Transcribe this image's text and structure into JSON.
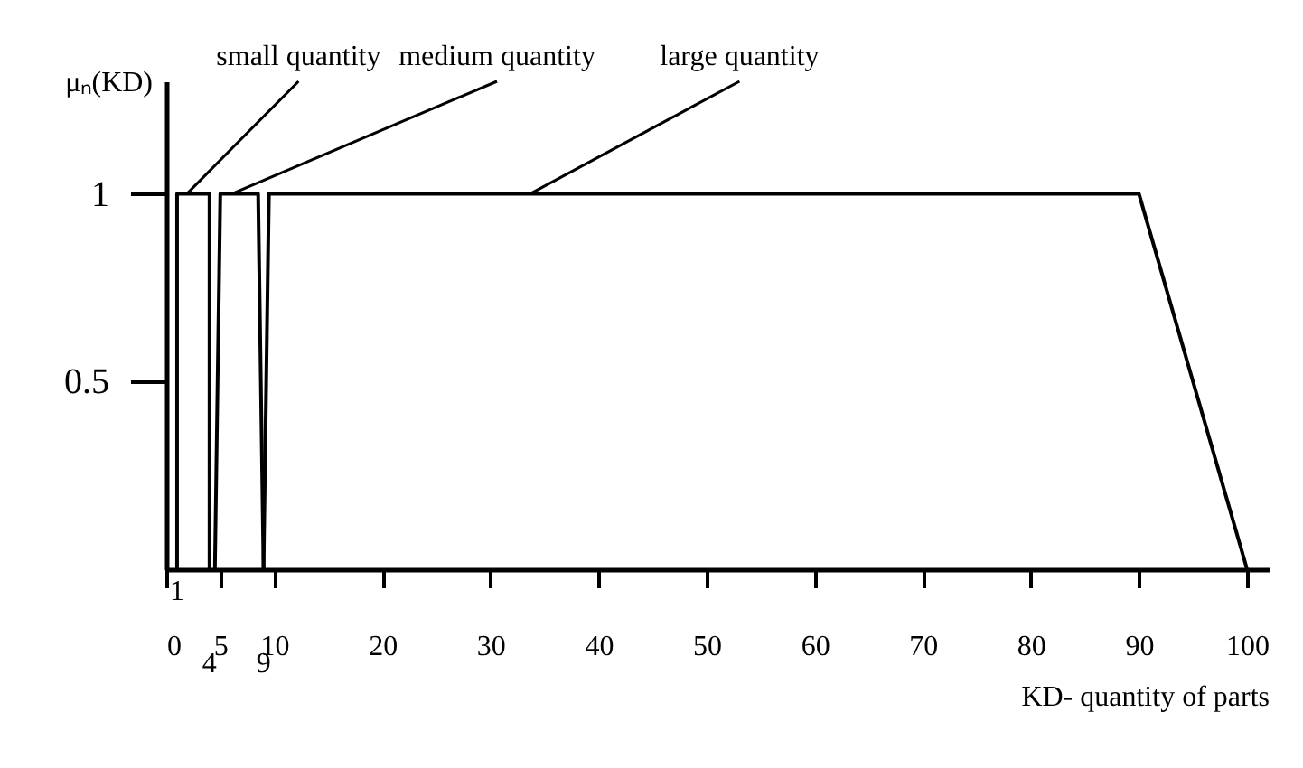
{
  "chart_data": {
    "type": "line",
    "xlabel": "KD- quantity of parts",
    "ylabel": "μₙ(KD)",
    "series": [
      {
        "name": "small quantity",
        "color": "#000000",
        "x": [
          1,
          1,
          4,
          4
        ],
        "values": [
          0,
          1,
          1,
          0
        ]
      },
      {
        "name": "medium quantity",
        "color": "#000000",
        "x": [
          4.5,
          5,
          8.5,
          9
        ],
        "values": [
          0,
          1,
          1,
          0
        ]
      },
      {
        "name": "large quantity",
        "color": "#000000",
        "x": [
          9,
          9.5,
          90,
          100
        ],
        "values": [
          0,
          1,
          1,
          0
        ]
      }
    ],
    "annotations": [
      {
        "text": "1",
        "x": 1,
        "y": 0
      },
      {
        "text": "4",
        "x": 4,
        "y": 0
      },
      {
        "text": "9",
        "x": 9,
        "y": 0
      }
    ],
    "xlim": [
      0,
      102
    ],
    "xticks": [
      0,
      5,
      10,
      20,
      30,
      40,
      50,
      60,
      70,
      80,
      90,
      100
    ],
    "ylim": [
      0,
      1.3
    ],
    "yticks": [
      0.5,
      1
    ],
    "grid": false,
    "legend": false,
    "marker": "none",
    "line_style": "solid"
  }
}
